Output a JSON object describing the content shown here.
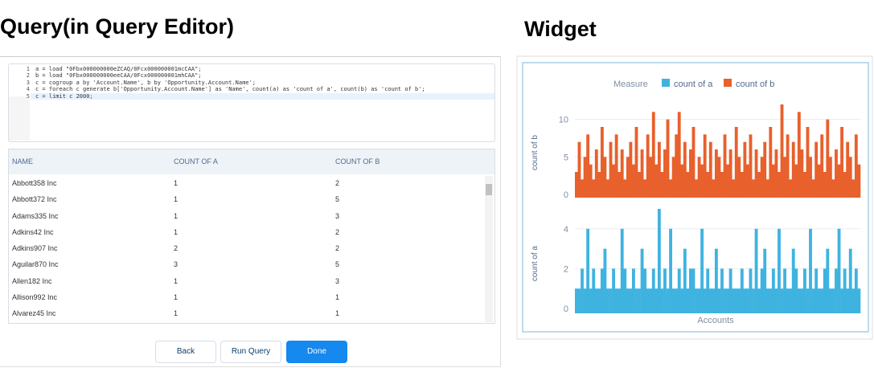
{
  "query": {
    "title": "Query(in Query Editor)",
    "code": [
      {
        "num": 1,
        "text": "a = load \"0Fbx000000000eZCAQ/0Fcx000000001mcCAA\";"
      },
      {
        "num": 2,
        "text": "b = load \"0Fbx000000000eeCAA/0Fcx000000001mhCAA\";"
      },
      {
        "num": 3,
        "text": "c = cogroup a by 'Account.Name', b by 'Opportunity.Account.Name';"
      },
      {
        "num": 4,
        "text": "c = foreach c generate b['Opportunity.Account.Name'] as 'Name', count(a) as 'count of a', count(b) as 'count of b';"
      },
      {
        "num": 5,
        "text": "c = limit c 2000;"
      }
    ],
    "table": {
      "headers": [
        "NAME",
        "COUNT OF A",
        "COUNT OF B"
      ],
      "rows": [
        [
          "Abbott358 Inc",
          1,
          2
        ],
        [
          "Abbott372 Inc",
          1,
          5
        ],
        [
          "Adams335 Inc",
          1,
          3
        ],
        [
          "Adkins42 Inc",
          1,
          2
        ],
        [
          "Adkins907 Inc",
          2,
          2
        ],
        [
          "Aguilar870 Inc",
          3,
          5
        ],
        [
          "Allen182 Inc",
          1,
          3
        ],
        [
          "Allison992 Inc",
          1,
          1
        ],
        [
          "Alvarez45 Inc",
          1,
          1
        ]
      ]
    },
    "buttons": [
      "Back",
      "Run Query",
      "Done"
    ]
  },
  "widget": {
    "title": "Widget",
    "legend_title": "Measure",
    "x_label": "Accounts",
    "chart_data": [
      {
        "type": "bar",
        "ylabel": "count of b",
        "ylim": [
          0,
          12
        ],
        "yticks": [
          0,
          5,
          10
        ],
        "grid": true,
        "series": [
          {
            "name": "count of b",
            "color": "#e8602c",
            "values": [
              3,
              7,
              2,
              5,
              8,
              4,
              2,
              6,
              3,
              9,
              5,
              2,
              7,
              4,
              8,
              3,
              6,
              2,
              5,
              7,
              4,
              9,
              3,
              6,
              2,
              8,
              5,
              11,
              4,
              7,
              3,
              6,
              10,
              2,
              5,
              8,
              11,
              4,
              7,
              3,
              6,
              9,
              2,
              5,
              4,
              8,
              3,
              7,
              2,
              6,
              5,
              3,
              8,
              4,
              6,
              2,
              9,
              5,
              3,
              7,
              4,
              8,
              2,
              6,
              3,
              5,
              7,
              2,
              9,
              4,
              6,
              3,
              12,
              5,
              8,
              2,
              7,
              4,
              11,
              6,
              3,
              9,
              5,
              2,
              7,
              4,
              8,
              3,
              10,
              5,
              2,
              6,
              4,
              9,
              3,
              7,
              5,
              2,
              8,
              4
            ]
          }
        ]
      },
      {
        "type": "bar",
        "ylabel": "count of a",
        "ylim": [
          0,
          5
        ],
        "yticks": [
          0,
          2,
          4
        ],
        "grid": true,
        "series": [
          {
            "name": "count of a",
            "color": "#3fb3e0",
            "values": [
              1,
              1,
              2,
              1,
              4,
              1,
              2,
              1,
              1,
              2,
              3,
              1,
              1,
              2,
              1,
              1,
              4,
              2,
              1,
              1,
              2,
              1,
              1,
              3,
              2,
              1,
              1,
              2,
              1,
              5,
              1,
              2,
              1,
              4,
              1,
              1,
              2,
              1,
              3,
              1,
              2,
              2,
              1,
              1,
              4,
              1,
              2,
              1,
              1,
              3,
              1,
              2,
              1,
              1,
              2,
              1,
              1,
              1,
              2,
              1,
              1,
              2,
              1,
              4,
              1,
              2,
              3,
              1,
              1,
              2,
              1,
              4,
              1,
              2,
              1,
              1,
              3,
              2,
              1,
              1,
              2,
              1,
              4,
              1,
              2,
              1,
              1,
              2,
              3,
              1,
              1,
              2,
              4,
              1,
              2,
              1,
              3,
              1,
              2,
              1
            ]
          }
        ]
      }
    ]
  }
}
